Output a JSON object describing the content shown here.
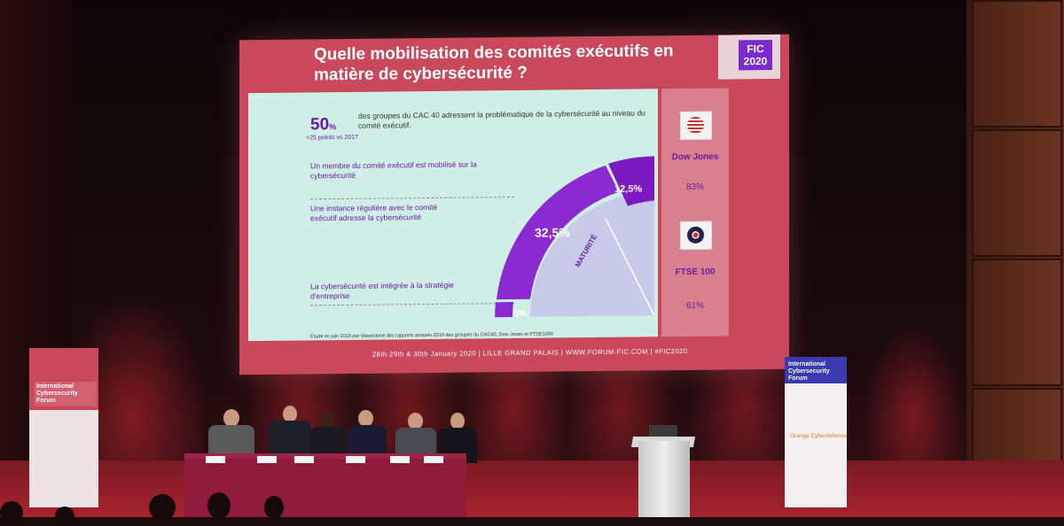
{
  "slide": {
    "title": "Quelle mobilisation des comités exécutifs en matière de cybersécurité ?",
    "logo": {
      "text": "FIC 2020"
    },
    "stat": {
      "value": "50",
      "unit": "%",
      "subtext": "+25 points vs 2017",
      "description": "des groupes du CAC 40 adressent la problématique de la cybersécurité au niveau du comité exécutif."
    },
    "items": [
      {
        "label": "Un membre du comité exécutif est mobilisé sur la cybersécurité"
      },
      {
        "label": "Une instance régulière avec le comité exécutif adresse la cybersécurité"
      },
      {
        "label": "La cybersécurité est intégrée à la stratégie d'entreprise"
      }
    ],
    "chart_data": {
      "type": "pie",
      "title": "",
      "axis_label": "MATURITÉ",
      "segments": [
        {
          "label": "5%",
          "value": 5
        },
        {
          "label": "32,5%",
          "value": 32.5
        },
        {
          "label": "12,5%",
          "value": 12.5
        }
      ]
    },
    "indices": [
      {
        "name": "Dow Jones",
        "value": "83%",
        "flag": "us-flag-icon"
      },
      {
        "name": "FTSE 100",
        "value": "61%",
        "flag": "uk-flag-icon"
      }
    ],
    "source": "Étude en juin 2019 par Wavestone des rapports annuels 2019 des groupes du CAC40, Dow Jones et FTSE1000",
    "footer": "28th 29th & 30th January 2020 | LILLE GRAND PALAIS | WWW.FORUM-FIC.COM | #FIC2020"
  },
  "banners": {
    "left": {
      "title": "International Cybersecurity Forum"
    },
    "right": {
      "title": "International Cybersecurity Forum",
      "sponsor": "Orange Cyberdefense"
    }
  },
  "colors": {
    "screen": "#c9485c",
    "panel": "#cfeee6",
    "accent": "#7a2ad0"
  }
}
